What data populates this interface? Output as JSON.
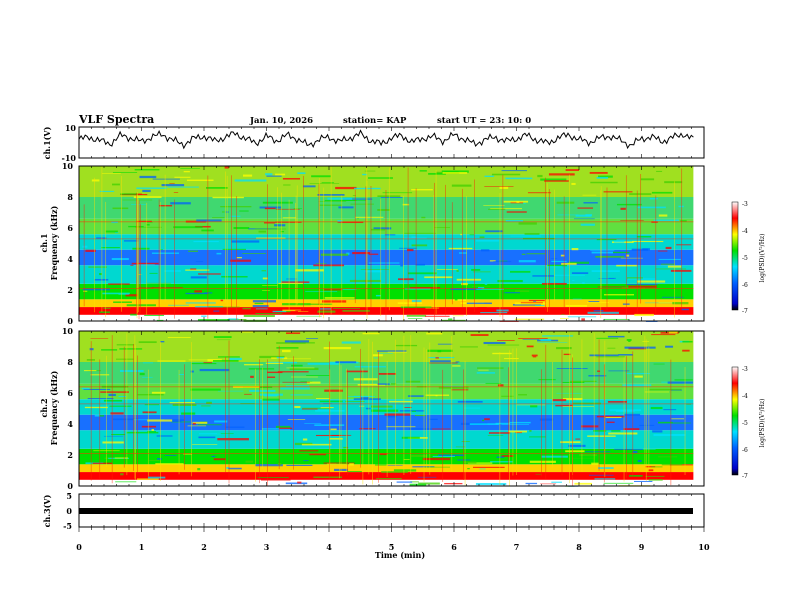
{
  "header": {
    "title": "VLF Spectra",
    "date": "Jan. 10, 2026",
    "station": "station= KAP",
    "start": "start  UT =   23: 10: 0"
  },
  "chart_data": [
    {
      "name": "ch1-waveform",
      "type": "line",
      "ylabel": "ch.1(V)",
      "ylim": [
        -10,
        10
      ],
      "yticks": [
        "10",
        "-10"
      ],
      "xlim": [
        0,
        9.83
      ],
      "values": [
        2.1,
        3.5,
        1.2,
        -0.8,
        4.6,
        2.9,
        0.4,
        3.8,
        5.2,
        1.7,
        -1.5,
        2.6,
        4.1,
        0.9,
        3.3,
        6.0,
        2.4,
        -0.3,
        3.9,
        1.1,
        4.8,
        2.2,
        -2.0,
        1.8,
        3.6,
        0.5,
        2.9,
        5.5,
        1.4,
        -0.9,
        3.1,
        4.4,
        0.2,
        2.7,
        3.8,
        1.0,
        4.9,
        2.3,
        -1.2,
        2.0,
        3.4,
        0.8,
        2.5,
        4.7,
        1.6,
        -0.5,
        3.0,
        5.1,
        1.9,
        0.1,
        2.8,
        4.2,
        1.3,
        -1.8,
        2.4,
        3.7,
        0.6,
        3.2,
        5.6,
        2.0
      ]
    },
    {
      "name": "ch1-spectrogram",
      "type": "heatmap",
      "ylabel": "Frequency (kHz)",
      "channel_label": "ch.1",
      "ylim": [
        0,
        10
      ],
      "yticks": [
        "0",
        "2",
        "4",
        "6",
        "8",
        "10"
      ],
      "colorbar": {
        "label": "log(PSD)(V²/Hz)",
        "ticks": [
          "-3",
          "-4",
          "-5",
          "-6",
          "-7"
        ],
        "range": [
          -7,
          -3
        ]
      }
    },
    {
      "name": "ch2-spectrogram",
      "type": "heatmap",
      "ylabel": "Frequency (kHz)",
      "channel_label": "ch.2",
      "ylim": [
        0,
        10
      ],
      "yticks": [
        "0",
        "2",
        "4",
        "6",
        "8",
        "10"
      ],
      "colorbar": {
        "label": "log(PSD)(V²/Hz)",
        "ticks": [
          "-3",
          "-4",
          "-5",
          "-6",
          "-7"
        ],
        "range": [
          -7,
          -3
        ]
      }
    },
    {
      "name": "ch3-waveform",
      "type": "line",
      "ylabel": "ch.3(V)",
      "ylim": [
        -5,
        5
      ],
      "yticks": [
        "5",
        "0",
        "-5"
      ],
      "xlim": [
        0,
        9.83
      ],
      "level": 0
    }
  ],
  "xaxis": {
    "label": "Time  (min)",
    "range": [
      0,
      10
    ],
    "ticks": [
      "0",
      "1",
      "2",
      "3",
      "4",
      "5",
      "6",
      "7",
      "8",
      "9",
      "10"
    ]
  }
}
